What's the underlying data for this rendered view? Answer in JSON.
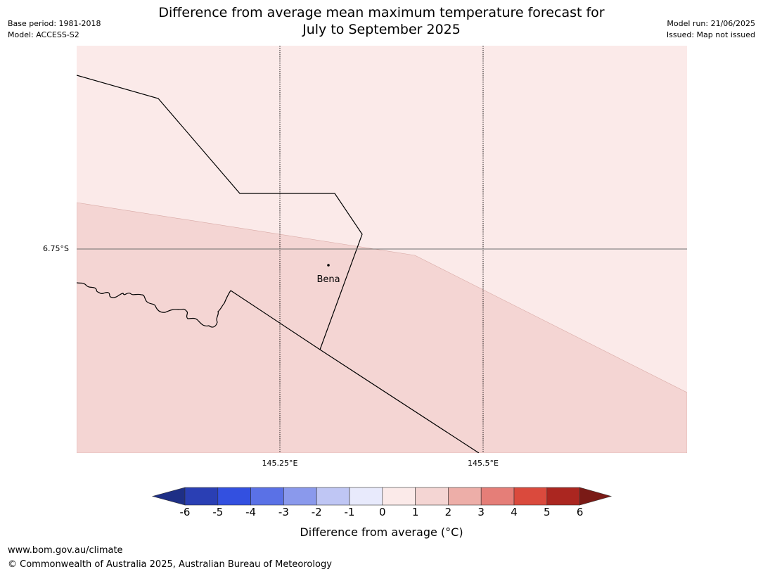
{
  "title_line1": "Difference from average mean maximum temperature forecast for",
  "title_line2": "July to September 2025",
  "meta": {
    "base_period": "Base period: 1981-2018",
    "model": "Model: ACCESS-S2",
    "model_run": "Model run: 21/06/2025",
    "issued": "Issued: Map not issued"
  },
  "map": {
    "latitude_label": "6.75°S",
    "longitude_labels": [
      "145.25°E",
      "145.5°E"
    ],
    "place_label": "Bena",
    "fill_colors": {
      "zero_to_one": "#fbeae9",
      "one_to_two": "#f4d5d3"
    }
  },
  "colorbar": {
    "ticks": [
      "-6",
      "-5",
      "-4",
      "-3",
      "-2",
      "-1",
      "0",
      "1",
      "2",
      "3",
      "4",
      "5",
      "6"
    ],
    "colors": [
      "#1e2f86",
      "#2a3fb4",
      "#3350e0",
      "#5a71e6",
      "#8a99ec",
      "#bfc6f4",
      "#e8eafc",
      "#fbeae9",
      "#f4d5d3",
      "#edaea8",
      "#e57e78",
      "#da4a3d",
      "#ab2620",
      "#7a1a16"
    ],
    "label": "Difference from average (°C)"
  },
  "footer": {
    "url": "www.bom.gov.au/climate",
    "copyright": "© Commonwealth of Australia 2025, Australian Bureau of Meteorology"
  }
}
